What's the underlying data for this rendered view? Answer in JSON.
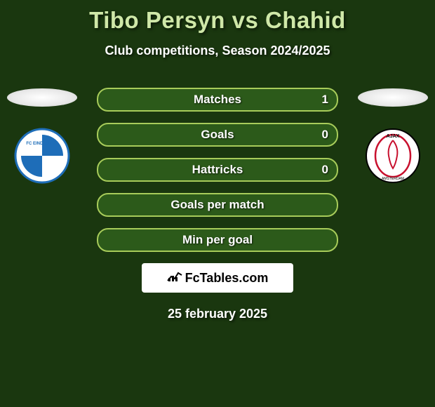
{
  "title": "Tibo Persyn vs Chahid",
  "subtitle": "Club competitions, Season 2024/2025",
  "date": "25 february 2025",
  "colors": {
    "background": "#1a370f",
    "title_color": "#cfe8a8",
    "bar_border": "#a8cc5a",
    "bar_bg": "#2c5a1a",
    "bar_fill": "#7cb342",
    "text": "#ffffff"
  },
  "stats": [
    {
      "label": "Matches",
      "right_value": "1",
      "fill_pct": 0
    },
    {
      "label": "Goals",
      "right_value": "0",
      "fill_pct": 0
    },
    {
      "label": "Hattricks",
      "right_value": "0",
      "fill_pct": 0
    },
    {
      "label": "Goals per match",
      "right_value": "",
      "fill_pct": 0
    },
    {
      "label": "Min per goal",
      "right_value": "",
      "fill_pct": 0
    }
  ],
  "branding": {
    "label": "FcTables.com"
  },
  "teams": {
    "left": {
      "name": "FC Eindhoven",
      "badge_primary": "#1e6db8",
      "badge_secondary": "#ffffff"
    },
    "right": {
      "name": "Ajax",
      "badge_primary": "#c8102e",
      "badge_secondary": "#ffffff"
    }
  }
}
